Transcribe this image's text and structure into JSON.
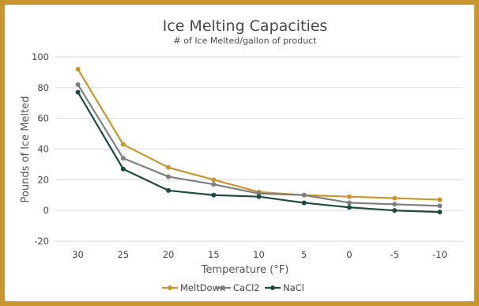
{
  "chart_data": {
    "type": "line",
    "title": "Ice Melting Capacities",
    "subtitle": "# of Ice Melted/gallon of product",
    "xlabel": "Temperature (°F)",
    "ylabel": "Pounds of Ice Melted",
    "categories": [
      "30",
      "25",
      "20",
      "15",
      "10",
      "5",
      "0",
      "-5",
      "-10"
    ],
    "ylim": [
      -20,
      100
    ],
    "yticks": [
      -20,
      0,
      20,
      40,
      60,
      80,
      100
    ],
    "grid": true,
    "legend_position": "bottom",
    "series": [
      {
        "name": "MeltDown",
        "color": "#c8952e",
        "values": [
          92,
          43,
          28,
          20,
          12,
          10,
          9,
          8,
          7
        ]
      },
      {
        "name": "CaCl2",
        "color": "#7f7f7f",
        "values": [
          82,
          34,
          22,
          17,
          11,
          10,
          5,
          4,
          3
        ]
      },
      {
        "name": "NaCl",
        "color": "#1f4a42",
        "values": [
          77,
          27,
          13,
          10,
          9,
          5,
          2,
          0,
          -1
        ]
      }
    ]
  }
}
